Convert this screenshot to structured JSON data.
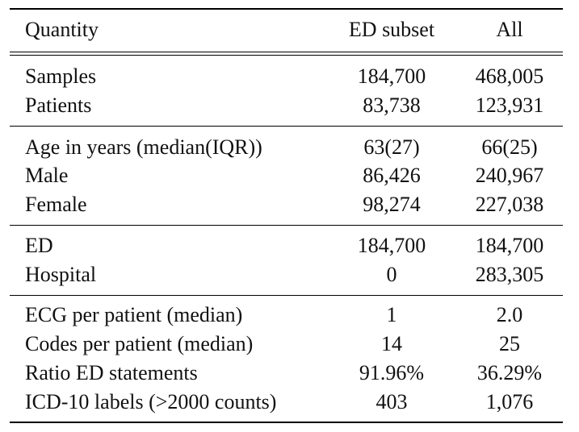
{
  "table": {
    "headers": [
      "Quantity",
      "ED subset",
      "All"
    ],
    "groups": [
      {
        "rows": [
          [
            "Samples",
            "184,700",
            "468,005"
          ],
          [
            "Patients",
            "83,738",
            "123,931"
          ]
        ]
      },
      {
        "rows": [
          [
            "Age in years (median(IQR))",
            "63(27)",
            "66(25)"
          ],
          [
            "Male",
            "86,426",
            "240,967"
          ],
          [
            "Female",
            "98,274",
            "227,038"
          ]
        ]
      },
      {
        "rows": [
          [
            "ED",
            "184,700",
            "184,700"
          ],
          [
            "Hospital",
            "0",
            "283,305"
          ]
        ]
      },
      {
        "rows": [
          [
            "ECG per patient (median)",
            "1",
            "2.0"
          ],
          [
            "Codes per patient (median)",
            "14",
            "25"
          ],
          [
            "Ratio ED statements",
            "91.96%",
            "36.29%"
          ],
          [
            "ICD-10 labels (>2000 counts)",
            "403",
            "1,076"
          ]
        ]
      }
    ]
  }
}
